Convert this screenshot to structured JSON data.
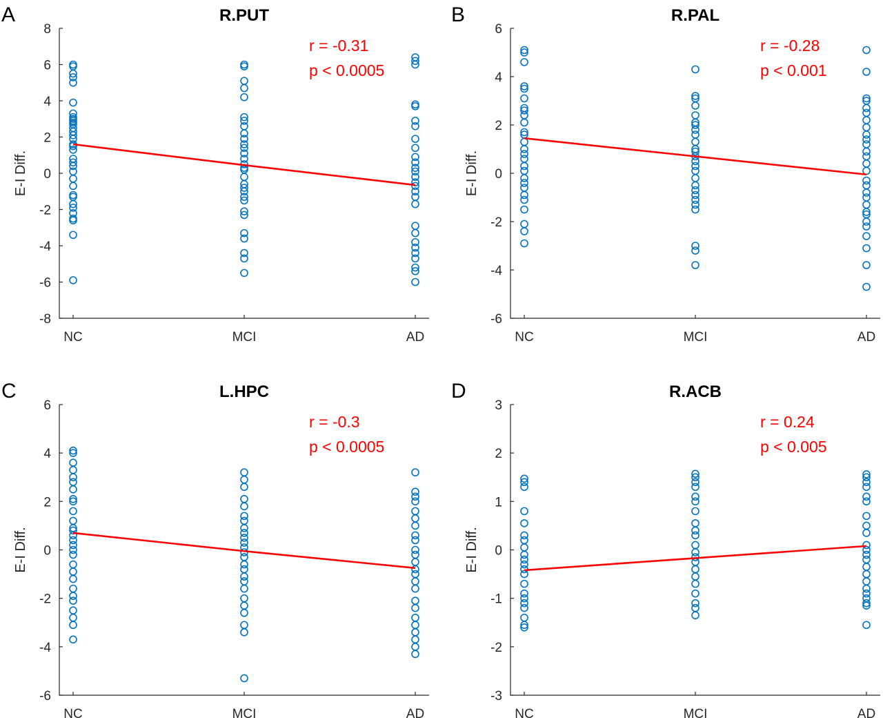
{
  "colors": {
    "points": "#0072BD",
    "fit": "#FF0000",
    "stats": "#FF0000"
  },
  "chart_data": [
    {
      "type": "scatter",
      "panel": "A",
      "title": "R.PUT",
      "xlabel": "",
      "ylabel": "E-I Diff.",
      "categories": [
        "NC",
        "MCI",
        "AD"
      ],
      "ylim": [
        -8,
        8
      ],
      "yticks": [
        -8,
        -6,
        -4,
        -2,
        0,
        2,
        4,
        6,
        8
      ],
      "stats": [
        "r = -0.31",
        "p < 0.0005"
      ],
      "fit": [
        1.6,
        0.45,
        -0.65
      ],
      "points": [
        [
          6.0,
          5.9,
          5.5,
          5.3,
          5.0,
          3.9,
          3.3,
          3.1,
          3.0,
          2.9,
          2.8,
          2.7,
          2.5,
          2.3,
          2.1,
          1.9,
          1.6,
          1.5,
          1.3,
          0.8,
          0.6,
          0.4,
          0.1,
          -0.3,
          -0.7,
          -1.2,
          -1.3,
          -1.7,
          -1.9,
          -2.2,
          -2.5,
          -2.6,
          -3.4,
          -5.9
        ],
        [
          6.0,
          5.9,
          5.1,
          4.7,
          4.2,
          3.1,
          2.9,
          2.6,
          2.2,
          1.9,
          1.6,
          1.4,
          1.1,
          0.8,
          0.5,
          0.3,
          0.2,
          -0.2,
          -0.6,
          -0.8,
          -1.0,
          -1.3,
          -1.5,
          -2.1,
          -2.3,
          -3.3,
          -3.6,
          -4.4,
          -4.7,
          -5.5
        ],
        [
          6.4,
          6.2,
          6.0,
          3.8,
          3.7,
          2.9,
          2.6,
          1.9,
          1.4,
          0.9,
          0.6,
          0.3,
          0.1,
          -0.2,
          -0.5,
          -0.7,
          -1.0,
          -1.3,
          -1.7,
          -2.9,
          -3.3,
          -3.8,
          -4.1,
          -4.4,
          -4.7,
          -5.2,
          -5.4,
          -6.0
        ]
      ]
    },
    {
      "type": "scatter",
      "panel": "B",
      "title": "R.PAL",
      "xlabel": "",
      "ylabel": "E-I Diff.",
      "categories": [
        "NC",
        "MCI",
        "AD"
      ],
      "ylim": [
        -6,
        6
      ],
      "yticks": [
        -6,
        -4,
        -2,
        0,
        2,
        4,
        6
      ],
      "stats": [
        "r = -0.28",
        "p < 0.001"
      ],
      "fit": [
        1.45,
        0.7,
        -0.05
      ],
      "points": [
        [
          5.1,
          5.0,
          4.6,
          3.6,
          3.5,
          3.1,
          2.7,
          2.6,
          2.4,
          2.1,
          1.7,
          1.6,
          1.3,
          1.0,
          0.8,
          0.6,
          0.3,
          0.1,
          -0.2,
          -0.4,
          -0.6,
          -0.9,
          -1.1,
          -1.5,
          -2.1,
          -2.4,
          -2.9
        ],
        [
          4.3,
          3.2,
          3.1,
          2.8,
          2.4,
          2.1,
          2.0,
          1.8,
          1.6,
          1.3,
          1.0,
          0.9,
          0.7,
          0.5,
          0.3,
          0.1,
          -0.2,
          -0.5,
          -0.7,
          -0.9,
          -1.1,
          -1.3,
          -1.5,
          -3.0,
          -3.2,
          -3.8
        ],
        [
          5.1,
          4.2,
          3.1,
          3.0,
          2.7,
          2.5,
          2.2,
          1.9,
          1.6,
          1.4,
          1.2,
          0.9,
          0.7,
          0.4,
          0.1,
          -0.3,
          -0.5,
          -0.8,
          -1.0,
          -1.3,
          -1.6,
          -1.7,
          -2.0,
          -2.2,
          -2.6,
          -3.1,
          -3.8,
          -4.7
        ]
      ]
    },
    {
      "type": "scatter",
      "panel": "C",
      "title": "L.HPC",
      "xlabel": "",
      "ylabel": "E-I Diff.",
      "categories": [
        "NC",
        "MCI",
        "AD"
      ],
      "ylim": [
        -6,
        6
      ],
      "yticks": [
        -6,
        -4,
        -2,
        0,
        2,
        4,
        6
      ],
      "stats": [
        "r = -0.3",
        "p < 0.0005"
      ],
      "fit": [
        0.7,
        -0.05,
        -0.75
      ],
      "points": [
        [
          4.1,
          4.0,
          3.6,
          3.3,
          3.0,
          2.8,
          2.5,
          2.1,
          2.0,
          1.6,
          1.2,
          0.9,
          0.8,
          0.6,
          0.4,
          0.2,
          0.0,
          -0.2,
          -0.6,
          -0.9,
          -1.2,
          -1.6,
          -1.9,
          -2.1,
          -2.5,
          -2.8,
          -3.1,
          -3.7
        ],
        [
          3.2,
          2.9,
          2.6,
          2.1,
          1.8,
          1.4,
          1.2,
          0.9,
          0.7,
          0.5,
          0.3,
          0.1,
          -0.1,
          -0.3,
          -0.6,
          -0.8,
          -1.1,
          -1.3,
          -1.6,
          -2.0,
          -2.3,
          -2.6,
          -3.1,
          -3.4,
          -5.3
        ],
        [
          3.2,
          2.4,
          2.2,
          2.0,
          1.6,
          1.3,
          1.0,
          0.6,
          0.4,
          0.0,
          -0.2,
          -0.5,
          -0.8,
          -1.0,
          -1.3,
          -1.6,
          -2.1,
          -2.4,
          -2.8,
          -3.1,
          -3.4,
          -3.7,
          -4.0,
          -4.3
        ]
      ]
    },
    {
      "type": "scatter",
      "panel": "D",
      "title": "R.ACB",
      "xlabel": "",
      "ylabel": "E-I Diff.",
      "categories": [
        "NC",
        "MCI",
        "AD"
      ],
      "ylim": [
        -3,
        3
      ],
      "yticks": [
        -3,
        -2,
        -1,
        0,
        1,
        2,
        3
      ],
      "stats": [
        "r = 0.24",
        "p < 0.005"
      ],
      "fit": [
        -0.42,
        -0.17,
        0.08
      ],
      "points": [
        [
          1.47,
          1.4,
          1.3,
          0.8,
          0.55,
          0.3,
          0.2,
          0.05,
          -0.1,
          -0.2,
          -0.3,
          -0.4,
          -0.5,
          -0.7,
          -0.9,
          -1.0,
          -1.1,
          -1.2,
          -1.4,
          -1.55,
          -1.6
        ],
        [
          1.57,
          1.5,
          1.4,
          1.3,
          1.1,
          1.0,
          0.8,
          0.55,
          0.4,
          0.3,
          0.1,
          -0.05,
          -0.15,
          -0.25,
          -0.4,
          -0.55,
          -0.7,
          -0.9,
          -1.1,
          -1.2,
          -1.35
        ],
        [
          1.56,
          1.5,
          1.4,
          1.3,
          1.1,
          1.0,
          0.7,
          0.5,
          0.35,
          0.1,
          0.0,
          -0.1,
          -0.2,
          -0.35,
          -0.5,
          -0.65,
          -0.8,
          -0.9,
          -1.0,
          -1.1,
          -1.15,
          -1.55
        ]
      ]
    }
  ]
}
